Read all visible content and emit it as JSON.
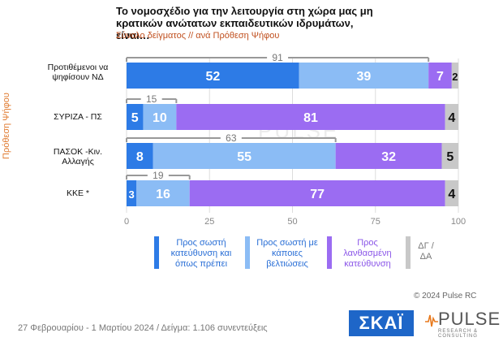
{
  "title": "Το νομοσχέδιο για την λειτουργία στη χώρα μας μη κρατικών ανώτατων εκπαιδευτικών ιδρυμάτων, είναι…",
  "subtitle": "Σύνολο δείγματος // ανά Πρόθεση Ψήφου",
  "vertical_label": "Πρόθεση Ψήφου",
  "credit": "© 2024 Pulse RC",
  "footer": "27 Φεβρουαρίου - 1 Μαρτίου 2024  /  Δείγμα:  1.106 συνεντεύξεις",
  "logos": {
    "skai": "ΣΚΑΪ",
    "pulse": "PULSE",
    "pulse_sub": "RESEARCH & CONSULTING"
  },
  "watermark": "PULSE",
  "chart_data": {
    "type": "bar",
    "orientation": "horizontal",
    "stacked": true,
    "categories": [
      "Προτιθέμενοι να ψηφίσουν ΝΔ",
      "ΣΥΡΙΖΑ - ΠΣ",
      "ΠΑΣΟΚ -Κιν. Αλλαγής",
      "ΚΚΕ *"
    ],
    "series": [
      {
        "name": "Προς σωστή κατεύθυνση και όπως πρέπει",
        "values": [
          52,
          5,
          8,
          3
        ],
        "color": "#2d7be6"
      },
      {
        "name": "Προς σωστή με κάποιες βελτιώσεις",
        "values": [
          39,
          10,
          55,
          16
        ],
        "color": "#8bbcf5"
      },
      {
        "name": "Προς λανθασμένη κατεύθυνση",
        "values": [
          7,
          81,
          32,
          77
        ],
        "color": "#9b6cf2"
      },
      {
        "name": "ΔΓ / ΔΑ",
        "values": [
          2,
          4,
          5,
          4
        ],
        "color": "#c8c8c8"
      }
    ],
    "totals_correct": [
      91,
      15,
      63,
      19
    ],
    "x_ticks": [
      "0",
      "25",
      "50",
      "75",
      "100"
    ],
    "xlim": [
      0,
      100
    ],
    "grid": true,
    "legend_position": "bottom"
  }
}
